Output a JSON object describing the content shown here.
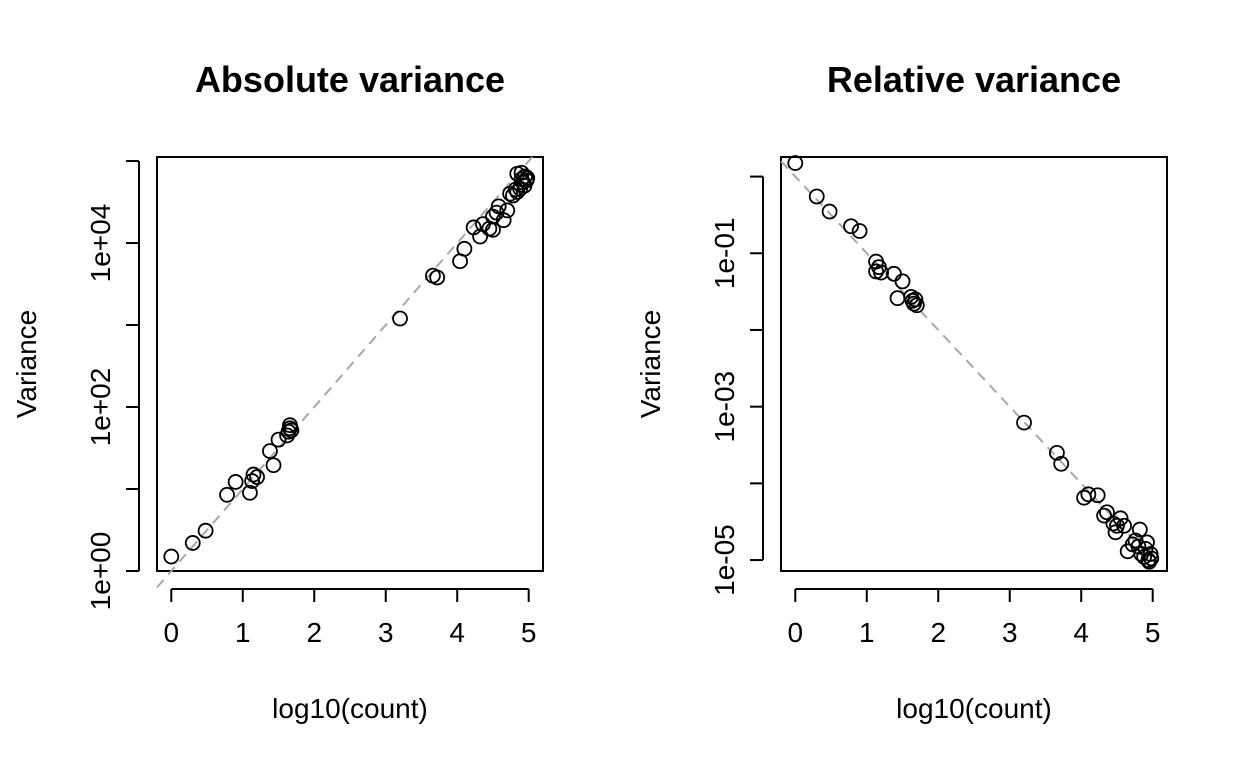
{
  "chart_data": [
    {
      "type": "scatter",
      "title": "Absolute variance",
      "xlabel": "log10(count)",
      "ylabel": "Variance",
      "y_scale": "log10",
      "xlim": [
        -0.2,
        5.2
      ],
      "ylim": [
        1.0,
        112000
      ],
      "x_ticks": [
        0,
        1,
        2,
        3,
        4,
        5
      ],
      "x_tick_labels": [
        "0",
        "1",
        "2",
        "3",
        "4",
        "5"
      ],
      "y_ticks": [
        1,
        10,
        100,
        1000,
        10000,
        100000
      ],
      "y_tick_labels": [
        "1e+00",
        "",
        "1e+02",
        "",
        "1e+04",
        ""
      ],
      "reference_line": {
        "slope_in_log": 1,
        "intercept_in_log": 0,
        "color": "#a8a8a8",
        "style": "dashed"
      },
      "grid": false,
      "points": [
        {
          "x": 0.0,
          "y": 1.5
        },
        {
          "x": 0.3,
          "y": 2.2
        },
        {
          "x": 0.48,
          "y": 3.1
        },
        {
          "x": 0.78,
          "y": 8.5
        },
        {
          "x": 0.9,
          "y": 12.2
        },
        {
          "x": 1.1,
          "y": 9.0
        },
        {
          "x": 1.13,
          "y": 12.5
        },
        {
          "x": 1.15,
          "y": 15.0
        },
        {
          "x": 1.2,
          "y": 14.0
        },
        {
          "x": 1.38,
          "y": 29.0
        },
        {
          "x": 1.43,
          "y": 19.5
        },
        {
          "x": 1.5,
          "y": 40.0
        },
        {
          "x": 1.62,
          "y": 45.0
        },
        {
          "x": 1.64,
          "y": 50.0
        },
        {
          "x": 1.66,
          "y": 55.0
        },
        {
          "x": 1.68,
          "y": 52.0
        },
        {
          "x": 1.66,
          "y": 60.0
        },
        {
          "x": 3.2,
          "y": 1200
        },
        {
          "x": 3.66,
          "y": 4000
        },
        {
          "x": 3.72,
          "y": 3800
        },
        {
          "x": 4.04,
          "y": 6000
        },
        {
          "x": 4.1,
          "y": 8500
        },
        {
          "x": 4.23,
          "y": 15500
        },
        {
          "x": 4.32,
          "y": 12000
        },
        {
          "x": 4.36,
          "y": 17000
        },
        {
          "x": 4.45,
          "y": 15000
        },
        {
          "x": 4.5,
          "y": 14500
        },
        {
          "x": 4.5,
          "y": 21000
        },
        {
          "x": 4.55,
          "y": 23500
        },
        {
          "x": 4.58,
          "y": 28000
        },
        {
          "x": 4.65,
          "y": 19000
        },
        {
          "x": 4.7,
          "y": 25000
        },
        {
          "x": 4.74,
          "y": 40000
        },
        {
          "x": 4.78,
          "y": 38000
        },
        {
          "x": 4.82,
          "y": 45000
        },
        {
          "x": 4.84,
          "y": 42000
        },
        {
          "x": 4.84,
          "y": 70000
        },
        {
          "x": 4.88,
          "y": 46000
        },
        {
          "x": 4.9,
          "y": 60000
        },
        {
          "x": 4.9,
          "y": 72000
        },
        {
          "x": 4.92,
          "y": 55000
        },
        {
          "x": 4.94,
          "y": 50000
        },
        {
          "x": 4.95,
          "y": 65000
        },
        {
          "x": 4.97,
          "y": 58000
        },
        {
          "x": 4.98,
          "y": 62000
        }
      ]
    },
    {
      "type": "scatter",
      "title": "Relative variance",
      "xlabel": "log10(count)",
      "ylabel": "Variance",
      "y_scale": "log10",
      "xlim": [
        -0.2,
        5.2
      ],
      "ylim": [
        7.2e-06,
        1.8
      ],
      "x_ticks": [
        0,
        1,
        2,
        3,
        4,
        5
      ],
      "x_tick_labels": [
        "0",
        "1",
        "2",
        "3",
        "4",
        "5"
      ],
      "y_ticks": [
        1e-05,
        0.0001,
        0.001,
        0.01,
        0.1,
        1
      ],
      "y_tick_labels": [
        "1e-05",
        "",
        "1e-03",
        "",
        "1e-01",
        ""
      ],
      "reference_line": {
        "slope_in_log": -1,
        "intercept_in_log": 0,
        "color": "#a8a8a8",
        "style": "dashed"
      },
      "grid": false,
      "points": [
        {
          "x": 0.0,
          "y": 1.5
        },
        {
          "x": 0.3,
          "y": 0.55
        },
        {
          "x": 0.48,
          "y": 0.35
        },
        {
          "x": 0.78,
          "y": 0.225
        },
        {
          "x": 0.9,
          "y": 0.195
        },
        {
          "x": 1.13,
          "y": 0.078
        },
        {
          "x": 1.13,
          "y": 0.058
        },
        {
          "x": 1.17,
          "y": 0.066
        },
        {
          "x": 1.2,
          "y": 0.056
        },
        {
          "x": 1.38,
          "y": 0.054
        },
        {
          "x": 1.43,
          "y": 0.026
        },
        {
          "x": 1.5,
          "y": 0.043
        },
        {
          "x": 1.62,
          "y": 0.027
        },
        {
          "x": 1.64,
          "y": 0.024
        },
        {
          "x": 1.66,
          "y": 0.022
        },
        {
          "x": 1.68,
          "y": 0.025
        },
        {
          "x": 1.7,
          "y": 0.021
        },
        {
          "x": 3.2,
          "y": 0.00062
        },
        {
          "x": 3.66,
          "y": 0.00025
        },
        {
          "x": 3.72,
          "y": 0.00018
        },
        {
          "x": 4.04,
          "y": 6.5e-05
        },
        {
          "x": 4.1,
          "y": 7.2e-05
        },
        {
          "x": 4.23,
          "y": 7e-05
        },
        {
          "x": 4.32,
          "y": 3.8e-05
        },
        {
          "x": 4.36,
          "y": 4.2e-05
        },
        {
          "x": 4.45,
          "y": 3e-05
        },
        {
          "x": 4.48,
          "y": 2.3e-05
        },
        {
          "x": 4.5,
          "y": 2.8e-05
        },
        {
          "x": 4.55,
          "y": 3.5e-05
        },
        {
          "x": 4.6,
          "y": 2.8e-05
        },
        {
          "x": 4.65,
          "y": 1.3e-05
        },
        {
          "x": 4.72,
          "y": 1.6e-05
        },
        {
          "x": 4.76,
          "y": 1.8e-05
        },
        {
          "x": 4.8,
          "y": 1.5e-05
        },
        {
          "x": 4.82,
          "y": 2.5e-05
        },
        {
          "x": 4.84,
          "y": 1.2e-05
        },
        {
          "x": 4.88,
          "y": 1.1e-05
        },
        {
          "x": 4.9,
          "y": 1.4e-05
        },
        {
          "x": 4.92,
          "y": 1.7e-05
        },
        {
          "x": 4.94,
          "y": 1e-05
        },
        {
          "x": 4.95,
          "y": 9.5e-06
        },
        {
          "x": 4.97,
          "y": 1.2e-05
        },
        {
          "x": 4.98,
          "y": 1.05e-05
        }
      ]
    }
  ]
}
